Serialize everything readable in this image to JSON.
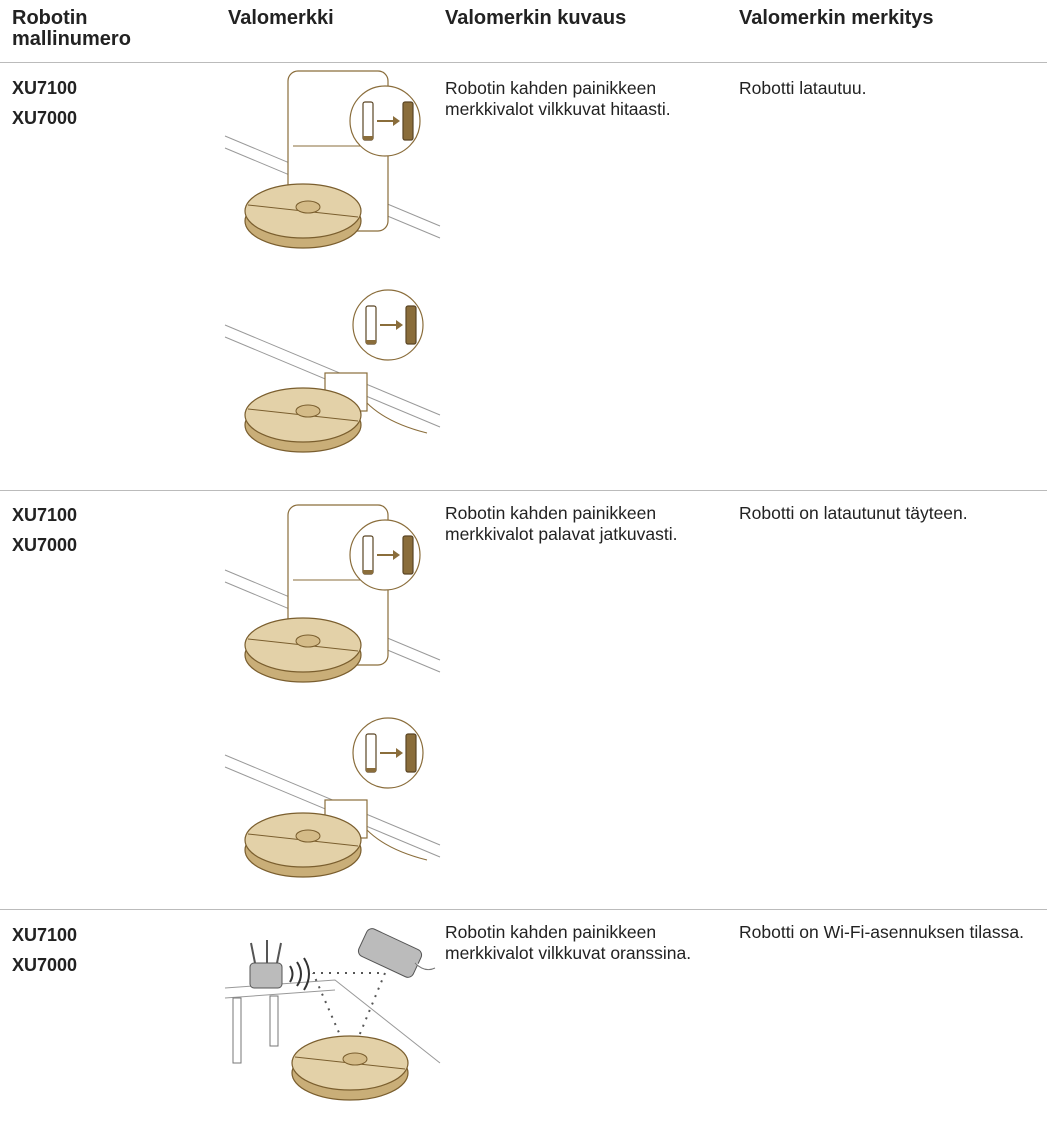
{
  "header": [
    "Robotin mallinumero",
    "Valomerkki",
    "Valomerkin kuvaus",
    "Valomerkin merkitys"
  ],
  "rows": [
    {
      "models": [
        "XU7100",
        "XU7000"
      ],
      "description": "Robotin kahden painikkeen merkkivalot vilkkuvat hitaasti.",
      "meaning": "Robotti latautuu."
    },
    {
      "models": [
        "XU7100",
        "XU7000"
      ],
      "description": "Robotin kahden painikkeen merkkivalot palavat jatkuvasti.",
      "meaning": "Robotti on latautunut täyteen."
    },
    {
      "models": [
        "XU7100",
        "XU7000"
      ],
      "description": "Robotin kahden painikkeen merkkivalot vilkkuvat oranssina.",
      "meaning": "Robotti on Wi-Fi-asennuksen tilassa."
    }
  ]
}
